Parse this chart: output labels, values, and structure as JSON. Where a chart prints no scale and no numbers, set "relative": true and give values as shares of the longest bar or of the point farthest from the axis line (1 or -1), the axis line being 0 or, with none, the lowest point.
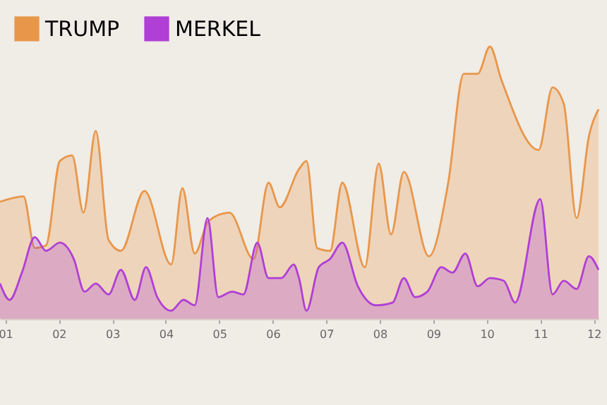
{
  "chart_data": {
    "type": "area",
    "relative": true,
    "legend": "top left",
    "grid": false,
    "xlim": [
      0.9,
      12.09
    ],
    "xticks": [
      {
        "value": 1,
        "label": "01"
      },
      {
        "value": 2,
        "label": "02"
      },
      {
        "value": 3,
        "label": "03"
      },
      {
        "value": 4,
        "label": "04"
      },
      {
        "value": 5,
        "label": "05"
      },
      {
        "value": 6,
        "label": "06"
      },
      {
        "value": 7,
        "label": "07"
      },
      {
        "value": 8,
        "label": "08"
      },
      {
        "value": 9,
        "label": "09"
      },
      {
        "value": 10,
        "label": "10"
      },
      {
        "value": 11,
        "label": "11"
      },
      {
        "value": 12,
        "label": "12"
      }
    ],
    "series": [
      {
        "name": "TRUMP",
        "color": "#e8974a",
        "x": [
          0.9,
          1.34,
          1.55,
          1.76,
          2.02,
          2.25,
          2.46,
          2.69,
          2.93,
          3.16,
          3.6,
          4.1,
          4.31,
          4.54,
          4.8,
          5.19,
          5.64,
          5.92,
          6.13,
          6.49,
          6.63,
          6.83,
          7.07,
          7.3,
          7.72,
          7.98,
          8.21,
          8.45,
          8.92,
          9.28,
          9.57,
          9.83,
          10.06,
          10.27,
          10.97,
          11.23,
          11.44,
          11.68,
          11.91,
          12.09
        ],
        "values": [
          0.43,
          0.45,
          0.26,
          0.27,
          0.58,
          0.6,
          0.39,
          0.69,
          0.29,
          0.25,
          0.47,
          0.2,
          0.48,
          0.24,
          0.36,
          0.39,
          0.22,
          0.5,
          0.41,
          0.55,
          0.58,
          0.26,
          0.25,
          0.5,
          0.19,
          0.57,
          0.31,
          0.54,
          0.23,
          0.5,
          0.9,
          0.9,
          1,
          0.88,
          0.62,
          0.85,
          0.79,
          0.37,
          0.67,
          0.77
        ]
      },
      {
        "name": "MERKEL",
        "color": "#b03fd6",
        "x": [
          0.9,
          1.08,
          1.31,
          1.55,
          1.76,
          2.02,
          2.28,
          2.48,
          2.69,
          2.93,
          3.16,
          3.42,
          3.63,
          3.84,
          4.1,
          4.33,
          4.54,
          4.78,
          4.98,
          5.24,
          5.45,
          5.71,
          5.92,
          6.16,
          6.39,
          6.49,
          6.63,
          6.86,
          7.07,
          7.3,
          7.59,
          7.93,
          8.24,
          8.45,
          8.66,
          8.89,
          9.15,
          9.36,
          9.6,
          9.83,
          10.06,
          10.32,
          10.53,
          11,
          11.23,
          11.44,
          11.68,
          11.91,
          12.09
        ],
        "values": [
          0.13,
          0.07,
          0.17,
          0.3,
          0.25,
          0.28,
          0.22,
          0.1,
          0.13,
          0.09,
          0.18,
          0.07,
          0.19,
          0.08,
          0.03,
          0.07,
          0.05,
          0.37,
          0.08,
          0.1,
          0.09,
          0.28,
          0.15,
          0.15,
          0.2,
          0.15,
          0.03,
          0.19,
          0.22,
          0.28,
          0.12,
          0.05,
          0.06,
          0.15,
          0.08,
          0.1,
          0.19,
          0.17,
          0.24,
          0.12,
          0.15,
          0.14,
          0.06,
          0.44,
          0.09,
          0.14,
          0.11,
          0.23,
          0.18
        ]
      }
    ]
  }
}
